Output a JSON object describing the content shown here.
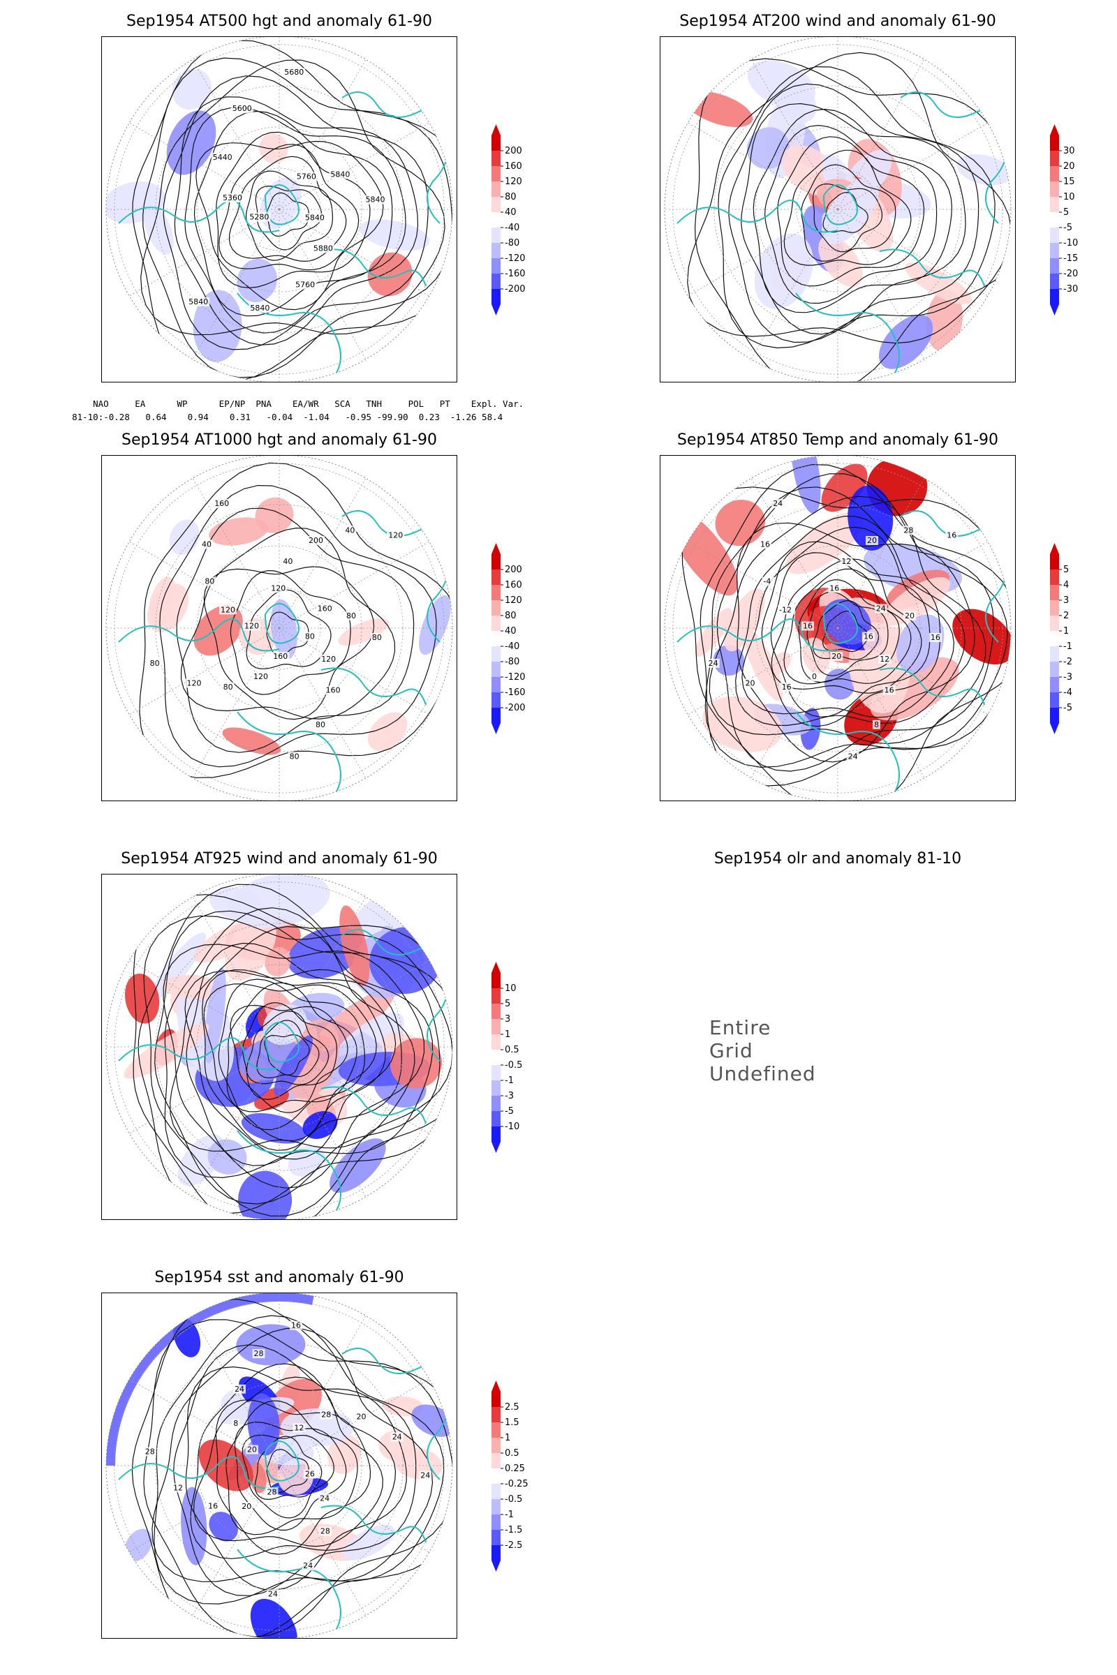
{
  "panels": [
    {
      "id": "p1",
      "title": "Sep1954 AT500 hgt and anomaly 61-90",
      "colorbar": [
        "200",
        "160",
        "120",
        "80",
        "40",
        "-40",
        "-80",
        "-120",
        "-160",
        "-200"
      ],
      "contour_labels": [
        "5840",
        "5880",
        "5760",
        "5840",
        "5840",
        "5280",
        "5360",
        "5440",
        "5600",
        "5680",
        "5760",
        "5840",
        "5840"
      ]
    },
    {
      "id": "p2",
      "title": "Sep1954 AT200 wind and anomaly 61-90",
      "colorbar": [
        "30",
        "20",
        "15",
        "10",
        "5",
        "-5",
        "-10",
        "-15",
        "-20",
        "-30"
      ],
      "contour_labels": []
    },
    {
      "id": "p3",
      "title": "Sep1954 AT1000 hgt and anomaly 61-90",
      "colorbar": [
        "200",
        "160",
        "120",
        "80",
        "40",
        "-40",
        "-80",
        "-120",
        "-160",
        "-200"
      ],
      "contour_labels": [
        "80",
        "120",
        "160",
        "80",
        "80",
        "160",
        "120",
        "80",
        "120",
        "80",
        "120",
        "120",
        "80",
        "40",
        "160",
        "120",
        "40",
        "200",
        "40",
        "120",
        "160",
        "80",
        "80"
      ]
    },
    {
      "id": "p4",
      "title": "Sep1954 AT850 Temp and anomaly 61-90",
      "colorbar": [
        "5",
        "4",
        "3",
        "2",
        "1",
        "-1",
        "-2",
        "-3",
        "-4",
        "-5"
      ],
      "contour_labels": [
        "16",
        "12",
        "16",
        "8",
        "24",
        "20",
        "0",
        "16",
        "20",
        "24",
        "16",
        "-12",
        "-4",
        "16",
        "24",
        "16",
        "12",
        "20",
        "28",
        "16",
        "24",
        "20",
        "16"
      ]
    },
    {
      "id": "p5",
      "title": "Sep1954 AT925 wind and anomaly 61-90",
      "colorbar": [
        "10",
        "5",
        "3",
        "1",
        "0.5",
        "-0.5",
        "-1",
        "-3",
        "-5",
        "-10"
      ],
      "contour_labels": []
    },
    {
      "id": "p6",
      "title": "Sep1954 olr and anomaly 81-10",
      "undefined_text": "Entire Grid Undefined"
    },
    {
      "id": "p7",
      "title": "Sep1954 sst and anomaly 61-90",
      "colorbar": [
        "2.5",
        "1.5",
        "1",
        "0.5",
        "0.25",
        "-0.25",
        "-0.5",
        "-1",
        "-1.5",
        "-2.5"
      ],
      "contour_labels": [
        "26",
        "24",
        "28",
        "24",
        "24",
        "28",
        "20",
        "16",
        "12",
        "28",
        "20",
        "8",
        "24",
        "28",
        "16",
        "12",
        "28",
        "20",
        "24",
        "24"
      ]
    }
  ],
  "index_table": {
    "headers": [
      "NAO",
      "EA",
      "WP",
      "EP/NP",
      "PNA",
      "EA/WR",
      "SCA",
      "TNH",
      "POL",
      "PT",
      "Expl. Var."
    ],
    "row_label": "81-10:",
    "values": [
      "-0.28",
      "0.64",
      "0.94",
      "0.31",
      "-0.04",
      "-1.04",
      "-0.95",
      "-99.90",
      "0.23",
      "-1.26",
      "58.4"
    ]
  },
  "colors": {
    "coast": "#22c0c0",
    "pos": [
      "#ffd9d9",
      "#fbb0b0",
      "#f47a7a",
      "#e83b3b",
      "#d40000"
    ],
    "neg": [
      "#e4e4ff",
      "#bcbcff",
      "#8f8fff",
      "#5a5aff",
      "#1a1aff"
    ]
  }
}
